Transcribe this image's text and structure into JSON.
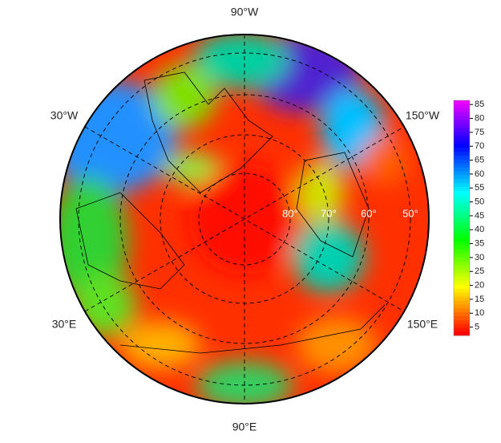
{
  "map": {
    "longitude_labels": [
      "90°W",
      "30°W",
      "150°W",
      "30°E",
      "150°E",
      "90°E"
    ],
    "latitude_labels": [
      "80°",
      "70°",
      "60°",
      "50°"
    ]
  },
  "colorbar": {
    "lim": [
      2,
      86.5
    ],
    "ticks": [
      5,
      10,
      15,
      20,
      25,
      30,
      35,
      40,
      45,
      50,
      55,
      60,
      65,
      70,
      75,
      80,
      85
    ]
  }
}
